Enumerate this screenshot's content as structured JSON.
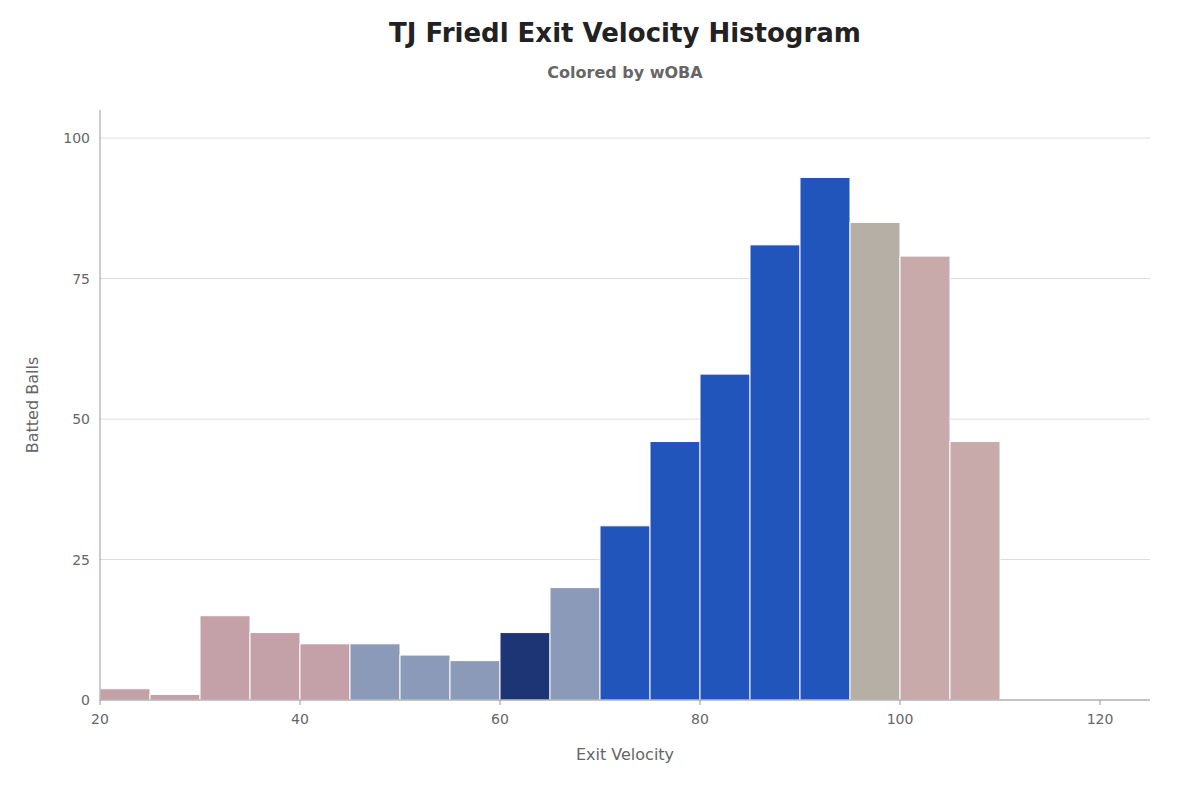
{
  "chart_data": {
    "type": "histogram",
    "title": "TJ Friedl Exit Velocity Histogram",
    "subtitle": "Colored by wOBA",
    "xlabel": "Exit Velocity",
    "ylabel": "Batted Balls",
    "bins": [
      20,
      25,
      30,
      35,
      40,
      45,
      50,
      55,
      60,
      65,
      70,
      75,
      80,
      85,
      90,
      95,
      100,
      105,
      110,
      115
    ],
    "values": [
      2,
      1,
      15,
      12,
      10,
      10,
      8,
      7,
      12,
      20,
      31,
      46,
      58,
      81,
      93,
      85,
      79,
      46,
      0
    ],
    "colors": [
      "#c4a0a8",
      "#c4a0a8",
      "#c4a0a8",
      "#c4a0a8",
      "#c4a0a8",
      "#8a9ab8",
      "#8a9ab8",
      "#8a9ab8",
      "#1e3575",
      "#8a9ab8",
      "#2255bb",
      "#2255bb",
      "#2255bb",
      "#2255bb",
      "#2255bb",
      "#b5afa5",
      "#c8aaaa",
      "#c8aaaa",
      "#c8aaaa"
    ],
    "xlim": [
      20,
      125
    ],
    "ylim": [
      0,
      105
    ],
    "xticks": [
      20,
      40,
      60,
      80,
      100,
      120
    ],
    "yticks": [
      0,
      25,
      50,
      75,
      100
    ],
    "grid": true
  }
}
